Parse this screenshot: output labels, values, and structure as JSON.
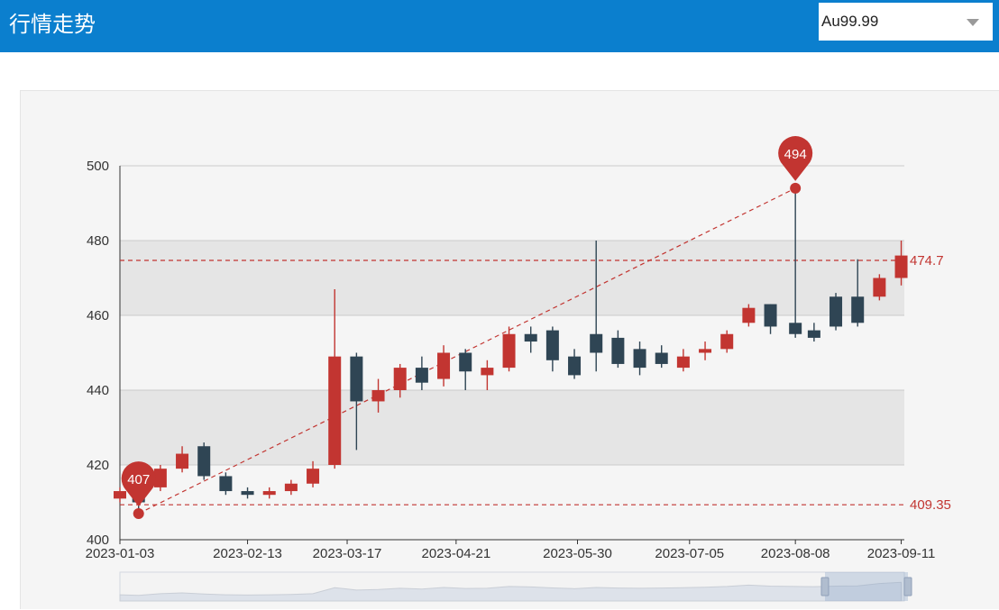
{
  "header": {
    "title": "行情走势",
    "instrument_select": {
      "value": "Au99.99"
    }
  },
  "colors": {
    "header_bg": "#0b7fce",
    "up": "#c23531",
    "down": "#2f4554",
    "marker": "#c23531",
    "band": "#e5e5e5"
  },
  "chart_data": {
    "type": "candlestick",
    "title": "",
    "xlabel": "",
    "ylabel": "",
    "ylim": [
      400,
      500
    ],
    "yticks": [
      400,
      420,
      440,
      460,
      480,
      500
    ],
    "xrange": [
      "2023-01-03",
      "2023-09-12"
    ],
    "xticks": [
      "2023-01-03",
      "2023-02-13",
      "2023-03-17",
      "2023-04-21",
      "2023-05-30",
      "2023-07-05",
      "2023-08-08",
      "2023-09-11"
    ],
    "grid": true,
    "mark_points": [
      {
        "label": "407",
        "date": "2023-01-09",
        "value": 407
      },
      {
        "label": "494",
        "date": "2023-08-08",
        "value": 494
      }
    ],
    "mark_lines": [
      {
        "label": "474.7",
        "value": 474.7
      },
      {
        "label": "409.35",
        "value": 409.35
      }
    ],
    "trend_line": {
      "from": {
        "date": "2023-01-09",
        "value": 407
      },
      "to": {
        "date": "2023-08-08",
        "value": 494
      }
    },
    "candles": [
      {
        "date": "2023-01-03",
        "open": 411,
        "close": 413,
        "low": 410,
        "high": 414
      },
      {
        "date": "2023-01-09",
        "open": 413,
        "close": 410,
        "low": 407,
        "high": 414
      },
      {
        "date": "2023-01-16",
        "open": 414,
        "close": 419,
        "low": 413,
        "high": 420
      },
      {
        "date": "2023-01-23",
        "open": 419,
        "close": 423,
        "low": 418,
        "high": 425
      },
      {
        "date": "2023-01-30",
        "open": 425,
        "close": 417,
        "low": 416,
        "high": 426
      },
      {
        "date": "2023-02-06",
        "open": 417,
        "close": 413,
        "low": 412,
        "high": 418
      },
      {
        "date": "2023-02-13",
        "open": 413,
        "close": 412,
        "low": 411,
        "high": 414
      },
      {
        "date": "2023-02-20",
        "open": 412,
        "close": 413,
        "low": 411,
        "high": 414
      },
      {
        "date": "2023-02-27",
        "open": 413,
        "close": 415,
        "low": 412,
        "high": 416
      },
      {
        "date": "2023-03-06",
        "open": 415,
        "close": 419,
        "low": 414,
        "high": 421
      },
      {
        "date": "2023-03-13",
        "open": 420,
        "close": 449,
        "low": 419,
        "high": 467
      },
      {
        "date": "2023-03-20",
        "open": 449,
        "close": 437,
        "low": 424,
        "high": 450
      },
      {
        "date": "2023-03-27",
        "open": 437,
        "close": 440,
        "low": 434,
        "high": 443
      },
      {
        "date": "2023-04-03",
        "open": 440,
        "close": 446,
        "low": 438,
        "high": 447
      },
      {
        "date": "2023-04-10",
        "open": 446,
        "close": 442,
        "low": 440,
        "high": 449
      },
      {
        "date": "2023-04-17",
        "open": 443,
        "close": 450,
        "low": 441,
        "high": 452
      },
      {
        "date": "2023-04-24",
        "open": 450,
        "close": 445,
        "low": 440,
        "high": 451
      },
      {
        "date": "2023-05-01",
        "open": 444,
        "close": 446,
        "low": 440,
        "high": 448
      },
      {
        "date": "2023-05-08",
        "open": 446,
        "close": 455,
        "low": 445,
        "high": 457
      },
      {
        "date": "2023-05-15",
        "open": 455,
        "close": 453,
        "low": 450,
        "high": 457
      },
      {
        "date": "2023-05-22",
        "open": 456,
        "close": 448,
        "low": 445,
        "high": 457
      },
      {
        "date": "2023-05-29",
        "open": 449,
        "close": 444,
        "low": 443,
        "high": 451
      },
      {
        "date": "2023-06-05",
        "open": 455,
        "close": 450,
        "low": 445,
        "high": 480
      },
      {
        "date": "2023-06-12",
        "open": 454,
        "close": 447,
        "low": 446,
        "high": 456
      },
      {
        "date": "2023-06-19",
        "open": 451,
        "close": 446,
        "low": 444,
        "high": 453
      },
      {
        "date": "2023-06-26",
        "open": 450,
        "close": 447,
        "low": 446,
        "high": 452
      },
      {
        "date": "2023-07-03",
        "open": 446,
        "close": 449,
        "low": 445,
        "high": 451
      },
      {
        "date": "2023-07-10",
        "open": 450,
        "close": 451,
        "low": 448,
        "high": 453
      },
      {
        "date": "2023-07-17",
        "open": 451,
        "close": 455,
        "low": 450,
        "high": 456
      },
      {
        "date": "2023-07-24",
        "open": 458,
        "close": 462,
        "low": 457,
        "high": 463
      },
      {
        "date": "2023-07-31",
        "open": 463,
        "close": 457,
        "low": 455,
        "high": 463
      },
      {
        "date": "2023-08-08",
        "open": 458,
        "close": 455,
        "low": 454,
        "high": 494
      },
      {
        "date": "2023-08-14",
        "open": 456,
        "close": 454,
        "low": 453,
        "high": 458
      },
      {
        "date": "2023-08-21",
        "open": 465,
        "close": 457,
        "low": 456,
        "high": 466
      },
      {
        "date": "2023-08-28",
        "open": 465,
        "close": 458,
        "low": 457,
        "high": 475
      },
      {
        "date": "2023-09-04",
        "open": 465,
        "close": 470,
        "low": 464,
        "high": 471
      },
      {
        "date": "2023-09-11",
        "open": 470,
        "close": 476,
        "low": 468,
        "high": 480
      }
    ]
  }
}
